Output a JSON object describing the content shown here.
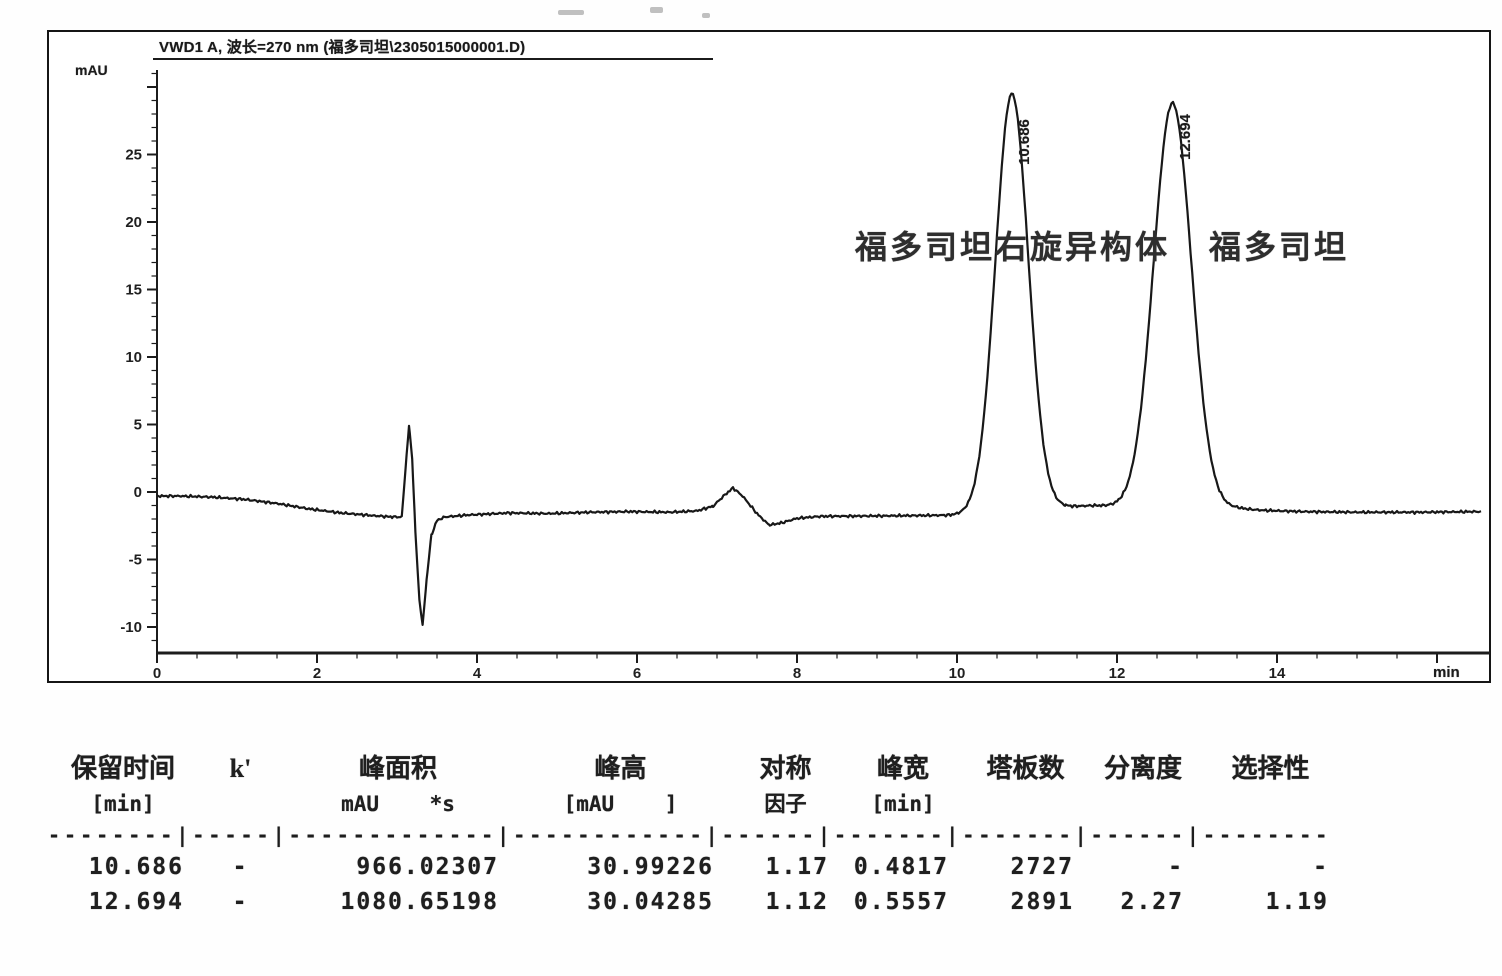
{
  "chart_data": {
    "type": "line",
    "title": "VWD1 A, 波长=270 nm (福多司坦\\2305015000001.D)",
    "ylabel": "mAU",
    "xlabel": "min",
    "xlim": [
      0,
      16.55
    ],
    "ylim": [
      -12,
      31.5
    ],
    "x_ticks": [
      0,
      2,
      4,
      6,
      8,
      10,
      12,
      14
    ],
    "y_ticks": [
      -10,
      -5,
      0,
      5,
      10,
      15,
      20,
      25
    ],
    "grid": false,
    "legend_position": "none",
    "peaks": [
      {
        "rt_min": 10.686,
        "label": "10.686",
        "height_mau": 30.99226,
        "area_mau_s": 966.02307,
        "width_min": 0.4817,
        "sigma_min": 0.205,
        "name": "福多司坦右旋异构体"
      },
      {
        "rt_min": 12.694,
        "label": "12.694",
        "height_mau": 30.04285,
        "area_mau_s": 1080.65198,
        "width_min": 0.5557,
        "sigma_min": 0.236,
        "name": "福多司坦"
      }
    ],
    "baseline_mau": [
      [
        0,
        -0.3
      ],
      [
        0.3,
        -0.3
      ],
      [
        0.7,
        -0.38
      ],
      [
        1.1,
        -0.55
      ],
      [
        1.5,
        -0.85
      ],
      [
        1.9,
        -1.25
      ],
      [
        2.3,
        -1.55
      ],
      [
        2.7,
        -1.75
      ],
      [
        2.95,
        -1.85
      ],
      [
        3.06,
        -1.85
      ],
      [
        3.11,
        2.0
      ],
      [
        3.15,
        4.9
      ],
      [
        3.19,
        2.5
      ],
      [
        3.23,
        -3.0
      ],
      [
        3.28,
        -8.0
      ],
      [
        3.32,
        -9.9
      ],
      [
        3.37,
        -6.5
      ],
      [
        3.43,
        -3.2
      ],
      [
        3.5,
        -2.1
      ],
      [
        3.6,
        -1.85
      ],
      [
        3.9,
        -1.7
      ],
      [
        4.4,
        -1.55
      ],
      [
        4.9,
        -1.6
      ],
      [
        5.4,
        -1.5
      ],
      [
        5.9,
        -1.45
      ],
      [
        6.4,
        -1.5
      ],
      [
        6.75,
        -1.4
      ],
      [
        6.95,
        -1.05
      ],
      [
        7.1,
        -0.2
      ],
      [
        7.2,
        0.3
      ],
      [
        7.32,
        -0.3
      ],
      [
        7.5,
        -1.6
      ],
      [
        7.65,
        -2.45
      ],
      [
        7.8,
        -2.3
      ],
      [
        8.0,
        -1.95
      ],
      [
        8.3,
        -1.8
      ],
      [
        8.8,
        -1.78
      ],
      [
        9.4,
        -1.75
      ],
      [
        9.9,
        -1.72
      ],
      [
        10.4,
        -1.6
      ],
      [
        11.0,
        -1.35
      ],
      [
        11.35,
        -1.1
      ],
      [
        11.7,
        -1.0
      ],
      [
        11.95,
        -1.05
      ],
      [
        12.3,
        -1.2
      ],
      [
        13.1,
        -1.25
      ],
      [
        13.5,
        -1.2
      ],
      [
        13.8,
        -1.35
      ],
      [
        14.3,
        -1.45
      ],
      [
        15.0,
        -1.5
      ],
      [
        15.8,
        -1.5
      ],
      [
        16.55,
        -1.45
      ]
    ],
    "artifacts": {
      "injection_spike_min": 3.2,
      "baseline_dip_min": 7.6
    }
  },
  "annotation": {
    "peak1_name": "福多司坦右旋异构体",
    "peak2_name": "福多司坦"
  },
  "table": {
    "headers": [
      {
        "line1": "保留时间",
        "line2": "[min]"
      },
      {
        "line1": "k'",
        "line2": ""
      },
      {
        "line1": "峰面积",
        "line2": "mAU    *s"
      },
      {
        "line1": "峰高",
        "line2": "[mAU    ]"
      },
      {
        "line1": "对称",
        "line2": "因子"
      },
      {
        "line1": "峰宽",
        "line2": "[min]"
      },
      {
        "line1": "塔板数",
        "line2": ""
      },
      {
        "line1": "分离度",
        "line2": ""
      },
      {
        "line1": "选择性",
        "line2": ""
      }
    ],
    "separator": "--------|-----|-------------|------------|------|-------|-------|------|--------",
    "rows": [
      [
        "10.686",
        "-",
        "966.02307",
        "30.99226",
        "1.17",
        "0.4817",
        "2727",
        "-",
        "-"
      ],
      [
        "12.694",
        "-",
        "1080.65198",
        "30.04285",
        "1.12",
        "0.5557",
        "2891",
        "2.27",
        "1.19"
      ]
    ]
  },
  "colors": {
    "trace": "#181818",
    "axis": "#1c1c1c",
    "text": "#1f1f1f"
  }
}
